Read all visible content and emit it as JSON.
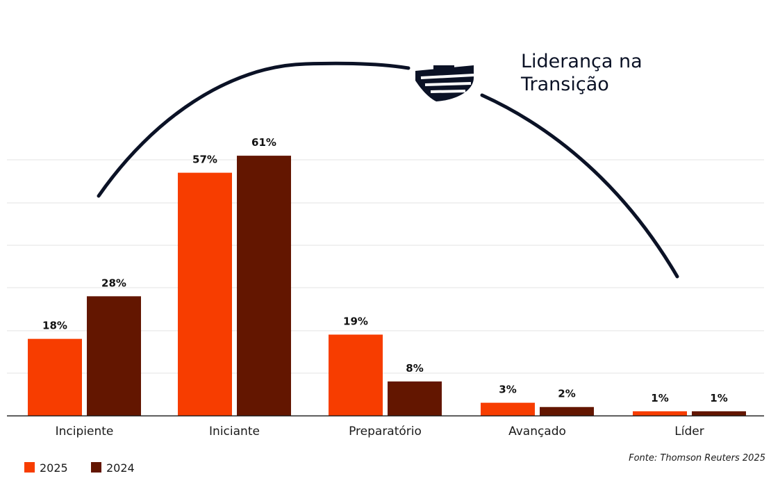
{
  "chart_data": {
    "type": "bar",
    "title": "",
    "xlabel": "",
    "ylabel": "",
    "ylim": [
      0,
      61
    ],
    "grid": true,
    "categories": [
      "Incipiente",
      "Iniciante",
      "Preparatório",
      "Avançado",
      "Líder"
    ],
    "series": [
      {
        "name": "2025",
        "color": "#f73d00",
        "values": [
          18,
          57,
          19,
          3,
          1
        ],
        "labels": [
          "18%",
          "57%",
          "19%",
          "3%",
          "1%"
        ]
      },
      {
        "name": "2024",
        "color": "#631600",
        "values": [
          28,
          61,
          8,
          2,
          1
        ],
        "labels": [
          "28%",
          "61%",
          "8%",
          "2%",
          "1%"
        ]
      }
    ],
    "annotation": {
      "line1": "Liderança na",
      "line2": "Transição",
      "icon": "shield-logo-icon",
      "color": "#0b1226"
    },
    "legend": {
      "placement": "bottom-left",
      "items": [
        {
          "label": "2025",
          "color": "#f73d00"
        },
        {
          "label": "2024",
          "color": "#631600"
        }
      ]
    },
    "source": "Fonte: Thomson Reuters 2025"
  }
}
